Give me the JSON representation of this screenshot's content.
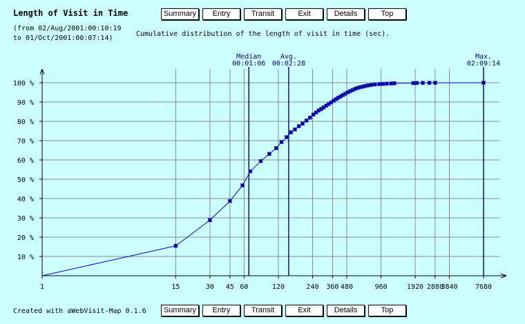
{
  "header": {
    "title": "Length of Visit in Time",
    "date_from": "(from 02/Aug/2001:00:10:19",
    "date_to": "to 01/Oct/2001:00:07:14)",
    "description": "Cumulative distribution of the length of visit in time (sec)."
  },
  "nav": {
    "summary": "Summary",
    "entry": "Entry",
    "transit": "Transit",
    "exit": "Exit",
    "details": "Details",
    "top": "Top"
  },
  "footer": {
    "created_with": "Created with aWebVisit-Map 0.1.6"
  },
  "chart_data": {
    "type": "line",
    "title": "Cumulative distribution of the length of visit in time (sec).",
    "xscale": "log",
    "xlim": [
      1,
      7680
    ],
    "ylim": [
      0,
      100
    ],
    "xticks": [
      1,
      15,
      30,
      45,
      60,
      120,
      240,
      360,
      480,
      960,
      1920,
      2880,
      3840,
      7680
    ],
    "xtick_labels": [
      "1",
      "15",
      "30",
      "45",
      "60",
      "120",
      "240",
      "360",
      "480",
      "960",
      "1920",
      "2880",
      "3840",
      "7680"
    ],
    "yticks": [
      10,
      20,
      30,
      40,
      50,
      60,
      70,
      80,
      90,
      100
    ],
    "ytick_labels": [
      "10 %",
      "20 %",
      "30 %",
      "40 %",
      "50 %",
      "60 %",
      "70 %",
      "80 %",
      "90 %",
      "100 %"
    ],
    "grid": true,
    "colors": {
      "line": "#0000cc",
      "marker": "#000088",
      "marker_edge": "#3333ff",
      "grid": "#888888",
      "axis": "#000000",
      "annotation": "#000088"
    },
    "series": [
      {
        "x": [
          1,
          15,
          30,
          45,
          58,
          68,
          84,
          100,
          115,
          128,
          142,
          155,
          168,
          182,
          196,
          212,
          228,
          244,
          258,
          272,
          286,
          300,
          316,
          332,
          350,
          368,
          386,
          404,
          424,
          444,
          466,
          488,
          512,
          540,
          568,
          598,
          630,
          664,
          700,
          740,
          790,
          850,
          930,
          1000,
          1080,
          1180,
          1260,
          1850,
          1990,
          2240,
          2560,
          2880,
          7680
        ],
        "y": [
          0,
          15.5,
          28.8,
          38.7,
          46.8,
          54.1,
          59.4,
          63.1,
          66.1,
          69.3,
          71.8,
          74.3,
          75.8,
          77.5,
          78.8,
          80.4,
          81.9,
          83.5,
          84.6,
          85.6,
          86.4,
          87.2,
          88.1,
          88.9,
          89.8,
          90.7,
          91.5,
          92.2,
          92.9,
          93.6,
          94.3,
          95,
          95.6,
          96.2,
          96.8,
          97.3,
          97.7,
          98,
          98.3,
          98.6,
          98.9,
          99.1,
          99.3,
          99.4,
          99.5,
          99.6,
          99.7,
          99.8,
          99.85,
          99.9,
          99.95,
          99.97,
          100
        ]
      }
    ],
    "annotations": [
      {
        "label": "Median",
        "value_label": "00:01:06",
        "x": 66
      },
      {
        "label": "Avg.",
        "value_label": "00:02:28",
        "x": 148
      },
      {
        "label": "Max.",
        "value_label": "02:09:14",
        "x": 7680
      }
    ]
  }
}
